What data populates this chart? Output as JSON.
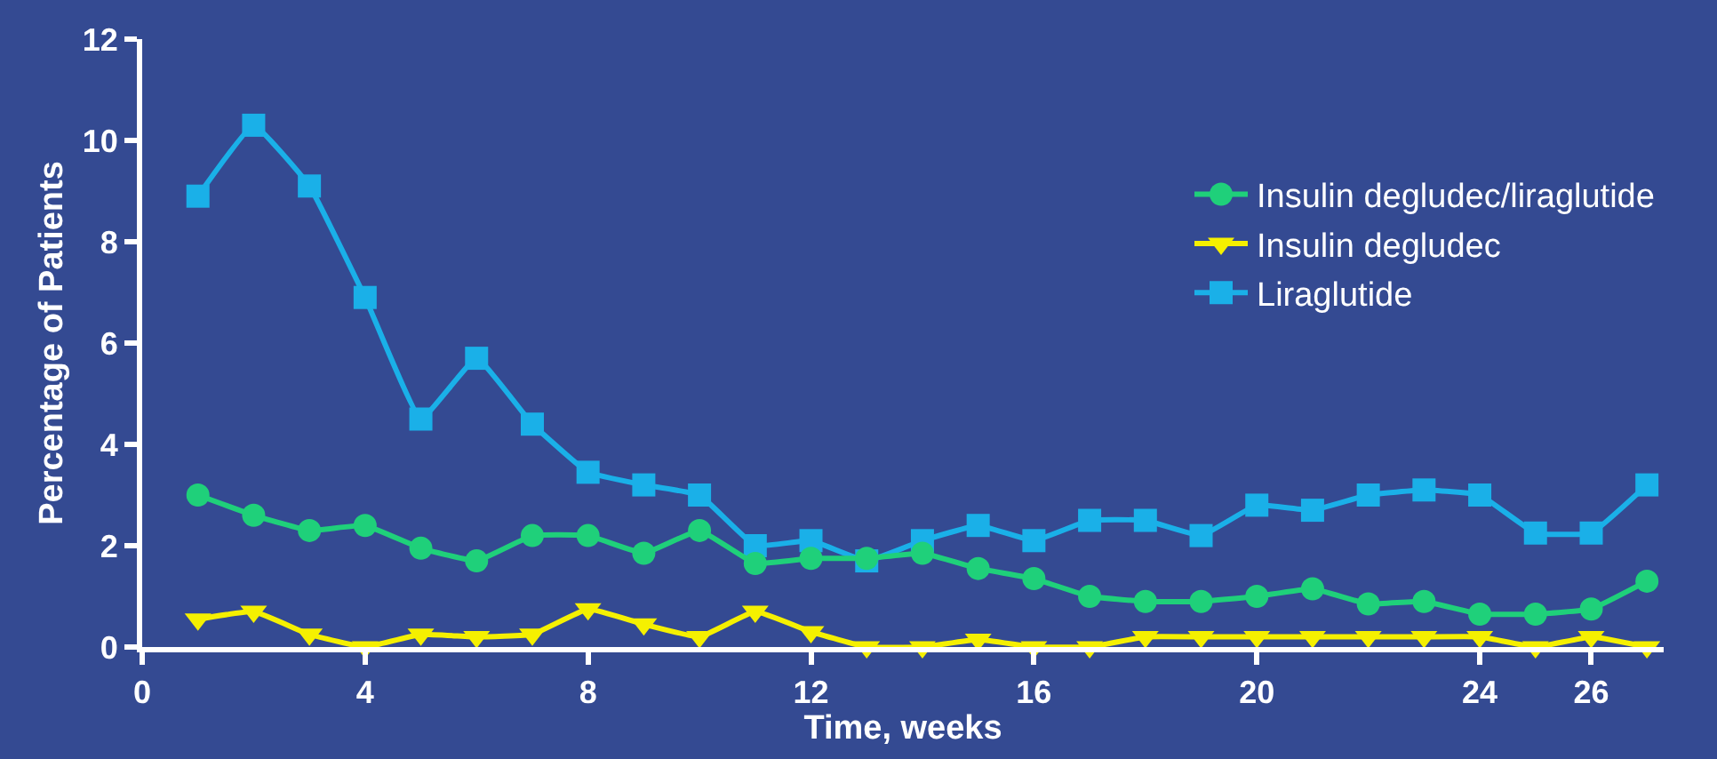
{
  "chart_data": {
    "type": "line",
    "xlabel": "Time, weeks",
    "ylabel": "Percentage of Patients",
    "x": [
      1,
      2,
      3,
      4,
      5,
      6,
      7,
      8,
      9,
      10,
      11,
      12,
      13,
      14,
      15,
      16,
      17,
      18,
      19,
      20,
      21,
      22,
      23,
      24,
      25,
      26,
      27
    ],
    "series": [
      {
        "name": "Insulin degludec/liraglutide",
        "color": "#1fd07a",
        "marker": "circle",
        "values": [
          3.0,
          2.6,
          2.3,
          2.4,
          1.95,
          1.7,
          2.2,
          2.2,
          1.85,
          2.3,
          1.65,
          1.75,
          1.75,
          1.85,
          1.55,
          1.35,
          1.0,
          0.9,
          0.9,
          1.0,
          1.15,
          0.85,
          0.9,
          0.65,
          0.65,
          0.75,
          1.3
        ]
      },
      {
        "name": "Insulin degludec",
        "color": "#f5f000",
        "marker": "triangle",
        "values": [
          0.55,
          0.7,
          0.25,
          0.0,
          0.25,
          0.2,
          0.25,
          0.75,
          0.45,
          0.2,
          0.7,
          0.3,
          0.0,
          0.0,
          0.15,
          0.0,
          0.0,
          0.2,
          0.2,
          0.2,
          0.2,
          0.2,
          0.2,
          0.2,
          0.0,
          0.2,
          0.0
        ]
      },
      {
        "name": "Liraglutide",
        "color": "#1ab0e8",
        "marker": "square",
        "values": [
          8.9,
          10.3,
          9.1,
          6.9,
          4.5,
          5.7,
          4.4,
          3.45,
          3.2,
          3.0,
          2.0,
          2.1,
          1.7,
          2.1,
          2.4,
          2.1,
          2.5,
          2.5,
          2.2,
          2.8,
          2.7,
          3.0,
          3.1,
          3.0,
          2.25,
          2.25,
          3.2
        ]
      }
    ],
    "xlim": [
      0,
      27.3
    ],
    "xticks": [
      0,
      4,
      8,
      12,
      16,
      20,
      24,
      26
    ],
    "ylim": [
      0,
      12
    ],
    "yticks": [
      0,
      2,
      4,
      6,
      8,
      10,
      12
    ],
    "grid": false,
    "legend": "top right",
    "line_style": "solid"
  }
}
